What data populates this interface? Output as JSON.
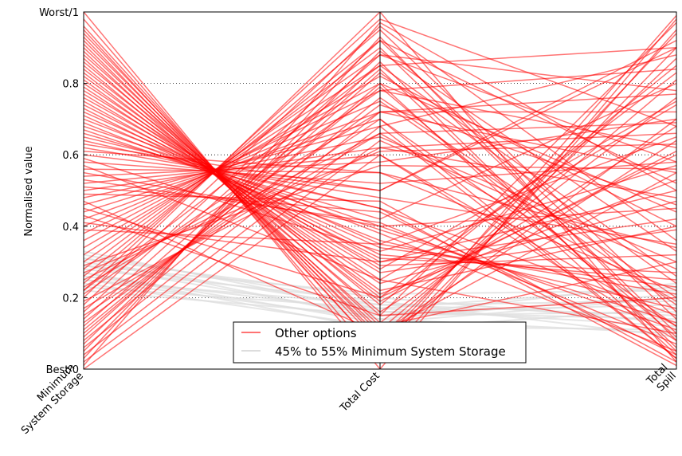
{
  "chart_data": {
    "type": "line",
    "subtype": "parallel-coordinates",
    "ylabel": "Normalised value",
    "axes": [
      "Minimum\nSystem Storage",
      "Total Cost",
      "Total\nSpill"
    ],
    "yticks": [
      {
        "value": 0,
        "label": "Best/0"
      },
      {
        "value": 0.2,
        "label": "0.2"
      },
      {
        "value": 0.4,
        "label": "0.4"
      },
      {
        "value": 0.6,
        "label": "0.6"
      },
      {
        "value": 0.8,
        "label": "0.8"
      },
      {
        "value": 1,
        "label": "Worst/1"
      }
    ],
    "ylim": [
      0,
      1
    ],
    "grid": "horizontal dotted",
    "legend_position": "bottom-center",
    "series": [
      {
        "name": "Other options",
        "color": "#ff0000",
        "lines": [
          [
            1.0,
            0.0,
            0.98
          ],
          [
            0.98,
            0.02,
            0.95
          ],
          [
            0.96,
            0.05,
            0.9
          ],
          [
            0.94,
            0.08,
            0.7
          ],
          [
            0.92,
            0.1,
            0.55
          ],
          [
            0.9,
            0.12,
            0.3
          ],
          [
            0.88,
            0.15,
            0.2
          ],
          [
            0.86,
            0.18,
            0.85
          ],
          [
            0.84,
            0.2,
            0.6
          ],
          [
            0.82,
            0.22,
            0.4
          ],
          [
            0.8,
            0.25,
            0.1
          ],
          [
            0.78,
            0.28,
            0.75
          ],
          [
            0.76,
            0.3,
            0.5
          ],
          [
            0.74,
            0.32,
            0.25
          ],
          [
            0.72,
            0.35,
            0.65
          ],
          [
            0.7,
            0.38,
            0.05
          ],
          [
            0.68,
            0.4,
            0.45
          ],
          [
            0.66,
            0.42,
            0.8
          ],
          [
            0.64,
            0.45,
            0.15
          ],
          [
            0.62,
            0.48,
            0.35
          ],
          [
            0.6,
            0.5,
            0.92
          ],
          [
            0.58,
            0.52,
            0.58
          ],
          [
            0.56,
            0.55,
            0.22
          ],
          [
            0.54,
            0.58,
            0.7
          ],
          [
            0.52,
            0.6,
            0.08
          ],
          [
            0.5,
            0.62,
            0.48
          ],
          [
            0.48,
            0.65,
            0.3
          ],
          [
            0.46,
            0.68,
            0.88
          ],
          [
            0.44,
            0.7,
            0.12
          ],
          [
            0.42,
            0.72,
            0.55
          ],
          [
            0.4,
            0.75,
            0.18
          ],
          [
            0.38,
            0.78,
            0.62
          ],
          [
            0.36,
            0.8,
            0.04
          ],
          [
            0.34,
            0.82,
            0.4
          ],
          [
            0.32,
            0.85,
            0.26
          ],
          [
            0.3,
            0.88,
            0.78
          ],
          [
            0.28,
            0.9,
            0.1
          ],
          [
            0.26,
            0.92,
            0.52
          ],
          [
            0.24,
            0.95,
            0.16
          ],
          [
            0.22,
            0.98,
            0.68
          ],
          [
            0.2,
            1.0,
            0.02
          ],
          [
            0.18,
            0.96,
            0.36
          ],
          [
            0.16,
            0.92,
            0.14
          ],
          [
            0.14,
            0.88,
            0.58
          ],
          [
            0.12,
            0.84,
            0.06
          ],
          [
            0.1,
            0.8,
            0.44
          ],
          [
            0.08,
            0.76,
            0.2
          ],
          [
            0.06,
            0.72,
            0.72
          ],
          [
            0.04,
            0.68,
            0.03
          ],
          [
            0.02,
            0.64,
            0.28
          ],
          [
            0.0,
            0.6,
            0.12
          ],
          [
            0.01,
            0.97,
            0.5
          ],
          [
            0.03,
            0.93,
            0.08
          ],
          [
            0.05,
            0.89,
            0.33
          ],
          [
            0.07,
            0.86,
            0.05
          ],
          [
            0.09,
            0.83,
            0.24
          ],
          [
            0.11,
            0.79,
            0.09
          ],
          [
            0.13,
            0.74,
            0.46
          ],
          [
            0.15,
            0.7,
            0.03
          ],
          [
            0.17,
            0.66,
            0.19
          ],
          [
            0.19,
            0.62,
            0.66
          ],
          [
            0.65,
            0.45,
            0.01
          ],
          [
            0.63,
            0.5,
            0.9
          ],
          [
            0.61,
            0.55,
            0.34
          ],
          [
            0.43,
            0.15,
            0.97
          ],
          [
            0.45,
            0.2,
            0.83
          ],
          [
            0.47,
            0.1,
            0.64
          ],
          [
            0.41,
            0.3,
            0.42
          ],
          [
            0.39,
            0.35,
            0.21
          ],
          [
            0.57,
            0.25,
            0.74
          ],
          [
            0.59,
            0.33,
            0.57
          ],
          [
            0.55,
            0.4,
            0.11
          ],
          [
            0.95,
            0.05,
            0.99
          ],
          [
            0.93,
            0.07,
            0.94
          ],
          [
            0.91,
            0.09,
            0.87
          ],
          [
            0.89,
            0.11,
            0.81
          ],
          [
            0.87,
            0.13,
            0.76
          ],
          [
            0.85,
            0.16,
            0.68
          ],
          [
            0.83,
            0.19,
            0.61
          ],
          [
            0.81,
            0.21,
            0.53
          ],
          [
            0.79,
            0.24,
            0.47
          ],
          [
            0.77,
            0.27,
            0.39
          ],
          [
            0.75,
            0.29,
            0.32
          ],
          [
            0.73,
            0.31,
            0.27
          ],
          [
            0.71,
            0.34,
            0.23
          ],
          [
            0.69,
            0.36,
            0.17
          ],
          [
            0.67,
            0.39,
            0.13
          ],
          [
            0.53,
            0.41,
            0.07
          ],
          [
            0.51,
            0.44,
            0.04
          ],
          [
            0.49,
            0.47,
            0.02
          ],
          [
            0.22,
            0.85,
            0.9
          ],
          [
            0.21,
            0.78,
            0.84
          ],
          [
            0.23,
            0.72,
            0.77
          ],
          [
            0.25,
            0.66,
            0.69
          ],
          [
            0.27,
            0.61,
            0.63
          ],
          [
            0.29,
            0.57,
            0.56
          ]
        ]
      },
      {
        "name": "45% to 55% Minimum System Storage",
        "color": "#dddddd",
        "lines": [
          [
            0.33,
            0.16,
            0.18
          ],
          [
            0.32,
            0.18,
            0.15
          ],
          [
            0.31,
            0.14,
            0.21
          ],
          [
            0.3,
            0.17,
            0.12
          ],
          [
            0.29,
            0.15,
            0.24
          ],
          [
            0.28,
            0.19,
            0.09
          ],
          [
            0.27,
            0.13,
            0.2
          ],
          [
            0.26,
            0.16,
            0.14
          ],
          [
            0.25,
            0.18,
            0.19
          ],
          [
            0.24,
            0.12,
            0.11
          ],
          [
            0.23,
            0.17,
            0.23
          ],
          [
            0.22,
            0.15,
            0.16
          ],
          [
            0.31,
            0.2,
            0.13
          ],
          [
            0.29,
            0.21,
            0.22
          ],
          [
            0.27,
            0.11,
            0.17
          ],
          [
            0.25,
            0.14,
            0.1
          ]
        ]
      }
    ]
  }
}
